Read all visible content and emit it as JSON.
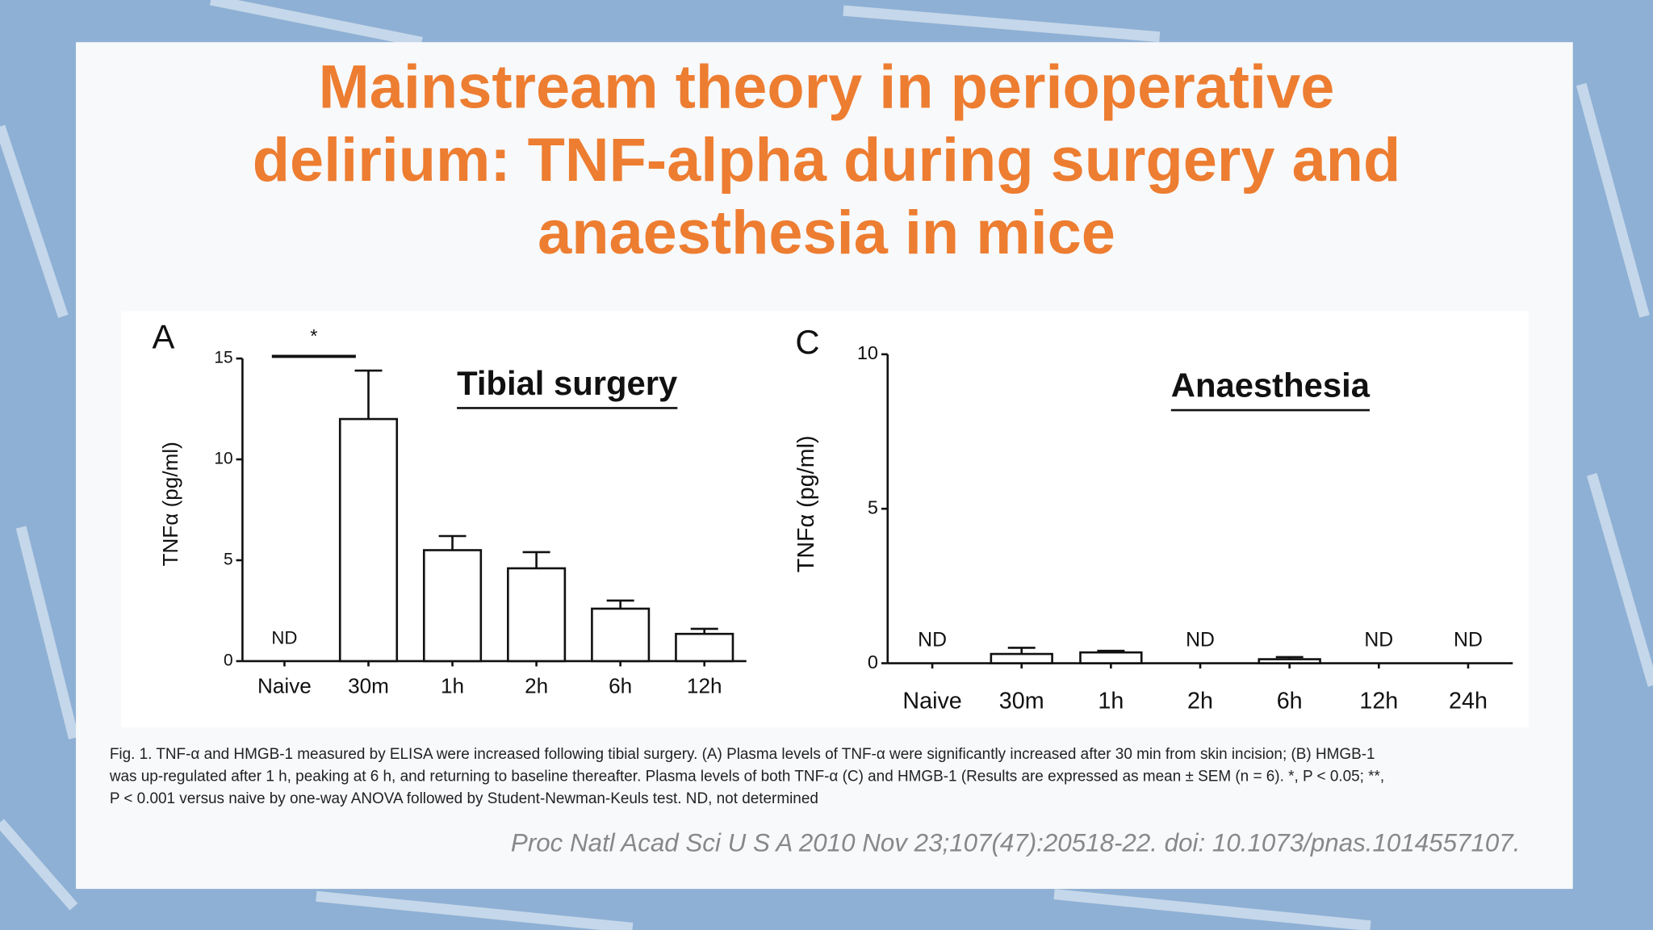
{
  "title_lines": [
    "Mainstream theory in perioperative",
    "delirium:  TNF-alpha during surgery and",
    "anaesthesia in mice"
  ],
  "chart_data": [
    {
      "type": "bar",
      "panel": "A",
      "title": "Tibial surgery",
      "y_label": "TNFα (pg/ml)",
      "categories": [
        "Naive",
        "30m",
        "1h",
        "2h",
        "6h",
        "12h"
      ],
      "values": [
        null,
        12.0,
        5.5,
        4.6,
        2.6,
        1.35
      ],
      "errors": [
        null,
        2.4,
        0.7,
        0.8,
        0.4,
        0.25
      ],
      "value_labels": [
        "ND",
        null,
        null,
        null,
        null,
        null
      ],
      "annotation": "*",
      "ylim": [
        0,
        15
      ],
      "yticks": [
        0,
        5,
        10,
        15
      ],
      "color": "#ffffff"
    },
    {
      "type": "bar",
      "panel": "C",
      "title": "Anaesthesia",
      "y_label": "TNFα (pg/ml)",
      "categories": [
        "Naive",
        "30m",
        "1h",
        "2h",
        "6h",
        "12h",
        "24h"
      ],
      "values": [
        null,
        0.3,
        0.35,
        null,
        0.13,
        null,
        null
      ],
      "errors": [
        null,
        0.2,
        0.05,
        null,
        0.07,
        null,
        null
      ],
      "value_labels": [
        "ND",
        null,
        null,
        "ND",
        null,
        "ND",
        "ND"
      ],
      "ylim": [
        0,
        10
      ],
      "yticks": [
        0,
        5,
        10
      ],
      "color": "#ffffff"
    }
  ],
  "caption_lines": [
    "Fig. 1. TNF-α and HMGB-1 measured by ELISA were increased following tibial surgery. (A) Plasma levels of TNF-α were significantly increased after 30 min from skin incision; (B) HMGB-1",
    "was up-regulated after 1 h, peaking at 6 h, and returning to baseline thereafter. Plasma levels of both TNF-α (C) and HMGB-1 (Results are expressed as mean ± SEM (n = 6). *, P < 0.05; **,",
    "P < 0.001 versus naive by one-way ANOVA followed by Student-Newman-Keuls test. ND, not determined"
  ],
  "citation": "Proc Natl Acad Sci U S A 2010 Nov 23;107(47):20518-22. doi: 10.1073/pnas.1014557107."
}
